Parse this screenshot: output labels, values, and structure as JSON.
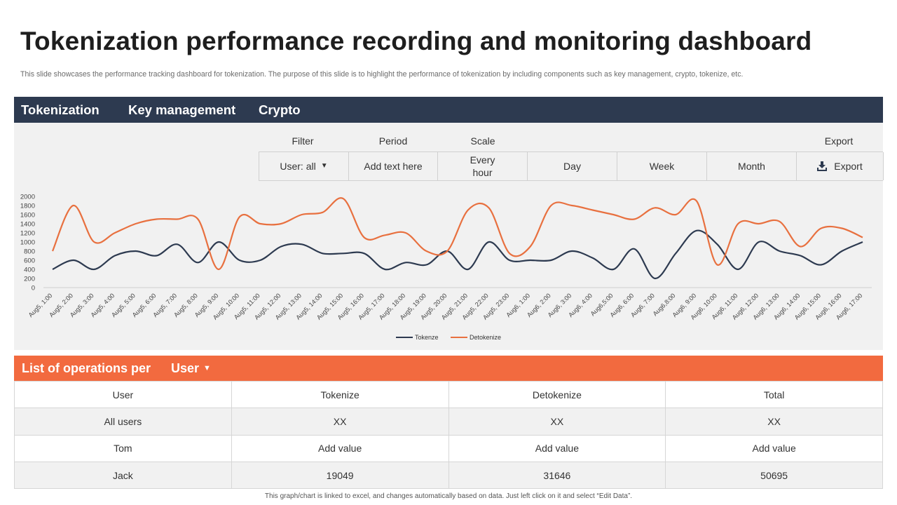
{
  "header": {
    "title": "Tokenization performance recording and monitoring dashboard",
    "subtitle": "This slide showcases the performance tracking dashboard for tokenization. The purpose of this slide is to highlight the performance of tokenization by including components such as key management, crypto, tokenize, etc."
  },
  "nav": {
    "tabs": [
      {
        "label": "Tokenization"
      },
      {
        "label": "Key management"
      },
      {
        "label": "Crypto"
      }
    ]
  },
  "controls": {
    "filter_label": "Filter",
    "period_label": "Period",
    "scale_label": "Scale",
    "export_label": "Export",
    "filter_value": "User: all",
    "filter_caret": "▼",
    "period_value": "Add text here",
    "scale_every_hour_line1": "Every",
    "scale_every_hour_line2": "hour",
    "scale_day": "Day",
    "scale_week": "Week",
    "scale_month": "Month",
    "export_button": "Export"
  },
  "chart_data": {
    "type": "line",
    "title": "",
    "xlabel": "",
    "ylabel": "",
    "ylim": [
      0,
      2000
    ],
    "yticks": [
      0,
      200,
      400,
      600,
      800,
      1000,
      1200,
      1400,
      1600,
      1800,
      2000
    ],
    "legend_position": "bottom-center",
    "categories": [
      "Aug5, 1:00",
      "Aug5, 2:00",
      "Aug5, 3:00",
      "Aug5, 4:00",
      "Aug5, 5:00",
      "Aug5, 6:00",
      "Aug5, 7:00",
      "Aug5, 8:00",
      "Aug5, 9:00",
      "Aug5, 10:00",
      "Aug5, 11:00",
      "Aug5, 12:00",
      "Aug5, 13:00",
      "Aug5, 14:00",
      "Aug5, 15:00",
      "Aug5, 16:00",
      "Aug5, 17:00",
      "Aug5, 18:00",
      "Aug5, 19:00",
      "Aug5, 20:00",
      "Aug5, 21:00",
      "Aug5, 22:00",
      "Aug5, 23:00",
      "Aug6, 1:00",
      "Aug6, 2:00",
      "Aug6, 3:00",
      "Aug6, 4:00",
      "Aug6,5:00",
      "Aug6, 6:00",
      "Aug6, 7:00",
      "Aug6,8:00",
      "Aug6, 9:00",
      "Aug6, 10:00",
      "Aug6, 11:00",
      "Aug6, 12:00",
      "Aug6, 13:00",
      "Aug6, 14:00",
      "Aug6, 15:00",
      "Aug6, 16:00",
      "Aug6, 17:00"
    ],
    "series": [
      {
        "name": "Tokenze",
        "color": "#2d3a50",
        "values": [
          400,
          600,
          400,
          700,
          800,
          700,
          950,
          550,
          1000,
          600,
          600,
          900,
          950,
          750,
          750,
          750,
          400,
          550,
          500,
          800,
          400,
          1000,
          600,
          600,
          600,
          800,
          650,
          400,
          850,
          200,
          750,
          1250,
          950,
          400,
          1000,
          800,
          700,
          500,
          800,
          1000
        ]
      },
      {
        "name": "Detokenize",
        "color": "#e8703f",
        "values": [
          800,
          1800,
          1000,
          1200,
          1400,
          1500,
          1500,
          1500,
          400,
          1550,
          1400,
          1400,
          1600,
          1650,
          1950,
          1100,
          1150,
          1200,
          800,
          800,
          1700,
          1750,
          750,
          900,
          1800,
          1800,
          1700,
          1600,
          1500,
          1750,
          1600,
          1900,
          500,
          1400,
          1400,
          1450,
          900,
          1300,
          1300,
          1100
        ]
      }
    ]
  },
  "operations": {
    "title": "List of operations per",
    "dropdown_value": "User",
    "dropdown_caret": "▼",
    "columns": [
      "User",
      "Tokenize",
      "Detokenize",
      "Total"
    ],
    "rows": [
      [
        "All users",
        "XX",
        "XX",
        "XX"
      ],
      [
        "Tom",
        "Add value",
        "Add value",
        "Add value"
      ],
      [
        "Jack",
        "19049",
        "31646",
        "50695"
      ]
    ]
  },
  "footer": {
    "note": "This graph/chart is linked to excel, and changes automatically based on data. Just left click on it and select “Edit Data”."
  }
}
